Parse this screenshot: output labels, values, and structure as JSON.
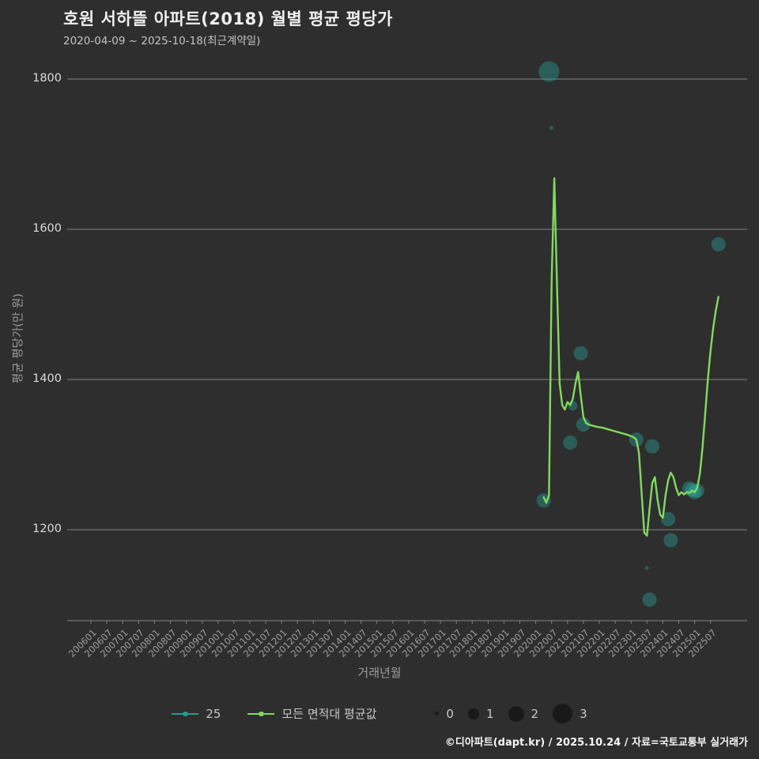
{
  "title": "호원 서하뜰 아파트(2018) 월별 평균 평당가",
  "subtitle": "2020-04-09 ~ 2025-10-18(최근계약일)",
  "footer": "©디아파트(dapt.kr) / 2025.10.24 / 자료=국토교통부 실거래가",
  "legend": {
    "line1": "25",
    "line2": "모든 면적대 평균값",
    "sizes": [
      "0",
      "1",
      "2",
      "3"
    ]
  },
  "colors": {
    "background": "#2e2e2e",
    "grid": "#848484",
    "teal": "#2b9a8f",
    "green": "#82d95e",
    "bubble": "#2aa396",
    "legend_bubble": "#191919",
    "title_text": "#efefef",
    "subtitle_text": "#c4c4c4",
    "ytick_text": "#dcdcdc",
    "xtick_text": "#9e9e9e",
    "axis_label_text": "#9e9e9e",
    "legend_text": "#c8c8c8"
  },
  "chart_data": {
    "type": "line+scatter",
    "title": "호원 서하뜰 아파트(2018) 월별 평균 평당가",
    "xlabel": "거래년월",
    "ylabel": "평균 평당가(만 원)",
    "grid": "horizontal",
    "legend_position": "bottom",
    "y_ticks": [
      1200,
      1400,
      1600,
      1800
    ],
    "ylim": [
      1080,
      1820
    ],
    "x_ticks": [
      "200601",
      "200607",
      "200701",
      "200707",
      "200801",
      "200807",
      "200901",
      "200907",
      "201001",
      "201007",
      "201101",
      "201107",
      "201201",
      "201207",
      "201301",
      "201307",
      "201401",
      "201407",
      "201501",
      "201507",
      "201601",
      "201607",
      "201701",
      "201707",
      "201801",
      "201807",
      "201901",
      "201907",
      "202001",
      "202007",
      "202101",
      "202107",
      "202201",
      "202207",
      "202301",
      "202307",
      "202401",
      "202407",
      "202501",
      "202507"
    ],
    "series": [
      {
        "name": "25",
        "color": "#2b9a8f",
        "points": [
          [
            "202004",
            1243
          ],
          [
            "202005",
            1236
          ],
          [
            "202006",
            1246
          ],
          [
            "202007",
            1530
          ],
          [
            "202008",
            1668
          ],
          [
            "202009",
            1530
          ],
          [
            "202010",
            1395
          ],
          [
            "202011",
            1366
          ],
          [
            "202012",
            1360
          ],
          [
            "202101",
            1370
          ],
          [
            "202102",
            1366
          ],
          [
            "202103",
            1374
          ],
          [
            "202104",
            1395
          ],
          [
            "202105",
            1410
          ],
          [
            "202106",
            1378
          ],
          [
            "202107",
            1350
          ],
          [
            "202108",
            1342
          ],
          [
            "202109",
            1340
          ],
          [
            "202110",
            1339
          ],
          [
            "202112",
            1337
          ],
          [
            "202202",
            1336
          ],
          [
            "202204",
            1334
          ],
          [
            "202206",
            1332
          ],
          [
            "202208",
            1330
          ],
          [
            "202210",
            1328
          ],
          [
            "202212",
            1326
          ],
          [
            "202302",
            1323
          ],
          [
            "202303",
            1320
          ],
          [
            "202304",
            1302
          ],
          [
            "202305",
            1248
          ],
          [
            "202306",
            1196
          ],
          [
            "202307",
            1192
          ],
          [
            "202308",
            1228
          ],
          [
            "202309",
            1262
          ],
          [
            "202310",
            1270
          ],
          [
            "202311",
            1240
          ],
          [
            "202312",
            1220
          ],
          [
            "202401",
            1216
          ],
          [
            "202402",
            1245
          ],
          [
            "202403",
            1266
          ],
          [
            "202404",
            1276
          ],
          [
            "202405",
            1270
          ],
          [
            "202406",
            1256
          ],
          [
            "202407",
            1246
          ],
          [
            "202408",
            1250
          ],
          [
            "202409",
            1247
          ],
          [
            "202410",
            1250
          ],
          [
            "202411",
            1249
          ],
          [
            "202412",
            1252
          ],
          [
            "202501",
            1250
          ],
          [
            "202502",
            1256
          ],
          [
            "202503",
            1275
          ],
          [
            "202504",
            1310
          ],
          [
            "202505",
            1355
          ],
          [
            "202506",
            1400
          ],
          [
            "202507",
            1438
          ],
          [
            "202508",
            1468
          ],
          [
            "202509",
            1492
          ],
          [
            "202510",
            1510
          ]
        ]
      },
      {
        "name": "모든 면적대 평균값",
        "color": "#82d95e",
        "points": [
          [
            "202004",
            1243
          ],
          [
            "202005",
            1236
          ],
          [
            "202006",
            1246
          ],
          [
            "202007",
            1530
          ],
          [
            "202008",
            1668
          ],
          [
            "202009",
            1530
          ],
          [
            "202010",
            1395
          ],
          [
            "202011",
            1366
          ],
          [
            "202012",
            1360
          ],
          [
            "202101",
            1370
          ],
          [
            "202102",
            1366
          ],
          [
            "202103",
            1374
          ],
          [
            "202104",
            1395
          ],
          [
            "202105",
            1410
          ],
          [
            "202106",
            1378
          ],
          [
            "202107",
            1350
          ],
          [
            "202108",
            1342
          ],
          [
            "202109",
            1340
          ],
          [
            "202110",
            1339
          ],
          [
            "202112",
            1337
          ],
          [
            "202202",
            1336
          ],
          [
            "202204",
            1334
          ],
          [
            "202206",
            1332
          ],
          [
            "202208",
            1330
          ],
          [
            "202210",
            1328
          ],
          [
            "202212",
            1326
          ],
          [
            "202302",
            1323
          ],
          [
            "202303",
            1320
          ],
          [
            "202304",
            1302
          ],
          [
            "202305",
            1248
          ],
          [
            "202306",
            1196
          ],
          [
            "202307",
            1192
          ],
          [
            "202308",
            1228
          ],
          [
            "202309",
            1262
          ],
          [
            "202310",
            1270
          ],
          [
            "202311",
            1240
          ],
          [
            "202312",
            1220
          ],
          [
            "202401",
            1216
          ],
          [
            "202402",
            1245
          ],
          [
            "202403",
            1266
          ],
          [
            "202404",
            1276
          ],
          [
            "202405",
            1270
          ],
          [
            "202406",
            1256
          ],
          [
            "202407",
            1246
          ],
          [
            "202408",
            1250
          ],
          [
            "202409",
            1247
          ],
          [
            "202410",
            1250
          ],
          [
            "202411",
            1249
          ],
          [
            "202412",
            1252
          ],
          [
            "202501",
            1250
          ],
          [
            "202502",
            1256
          ],
          [
            "202503",
            1275
          ],
          [
            "202504",
            1310
          ],
          [
            "202505",
            1355
          ],
          [
            "202506",
            1400
          ],
          [
            "202507",
            1438
          ],
          [
            "202508",
            1468
          ],
          [
            "202509",
            1492
          ],
          [
            "202510",
            1510
          ]
        ]
      }
    ],
    "bubbles": {
      "name": "월별 거래량 버블(월, 평당가, 크기 0-3)",
      "points": [
        [
          "202004",
          1239,
          2
        ],
        [
          "202006",
          1810,
          3
        ],
        [
          "202007",
          1735,
          0
        ],
        [
          "202102",
          1316,
          2
        ],
        [
          "202103",
          1365,
          1
        ],
        [
          "202106",
          1435,
          2
        ],
        [
          "202107",
          1340,
          2
        ],
        [
          "202303",
          1320,
          2
        ],
        [
          "202307",
          1149,
          0
        ],
        [
          "202308",
          1107,
          2
        ],
        [
          "202309",
          1311,
          2
        ],
        [
          "202403",
          1214,
          2
        ],
        [
          "202404",
          1186,
          2
        ],
        [
          "202411",
          1255,
          2
        ],
        [
          "202412",
          1253,
          2
        ],
        [
          "202501",
          1250,
          2
        ],
        [
          "202502",
          1252,
          2
        ],
        [
          "202510",
          1580,
          2
        ]
      ]
    },
    "bubble_size_legend": [
      0,
      1,
      2,
      3
    ]
  }
}
